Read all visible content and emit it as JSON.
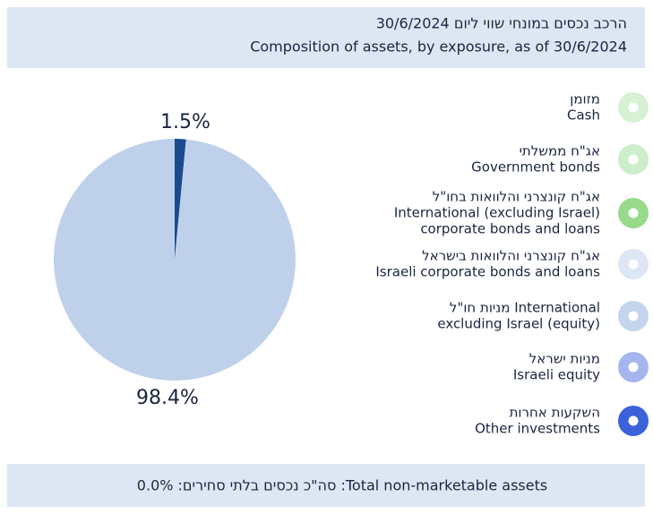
{
  "header": {
    "title_he": "הרכב נכסים במונחי שווי ליום 30/6/2024",
    "title_en": "Composition of assets, by exposure, as of 30/6/2024"
  },
  "chart_data": {
    "type": "pie",
    "categories": [
      null,
      null
    ],
    "values": [
      1.5,
      98.4
    ],
    "value_labels": [
      "1.5%",
      "98.4%"
    ],
    "colors": [
      "#1b4a8e",
      "#bfd1ea"
    ]
  },
  "legend": [
    {
      "he": "מזומן",
      "en": [
        "Cash"
      ],
      "color": "#d6f1d4"
    },
    {
      "he": "אג\"ח ממשלתי",
      "en": [
        "Government bonds"
      ],
      "color": "#cdeecb"
    },
    {
      "he": "אג\"ח קונצרני והלוואות בחו\"ל",
      "en": [
        "International (excluding Israel)",
        "corporate bonds and loans"
      ],
      "color": "#96da8a"
    },
    {
      "he": "אג\"ח קונצרני והלוואות בישראל",
      "en": [
        "Israeli corporate bonds and loans"
      ],
      "color": "#dce6f4"
    },
    {
      "he": "מניות חו\"ל International",
      "en": [
        "excluding Israel (equity)"
      ],
      "color": "#c3d4ec"
    },
    {
      "he": "מניות ישראל",
      "en": [
        "Israeli equity"
      ],
      "color": "#a5b5ee"
    },
    {
      "he": "השקעות אחרות",
      "en": [
        "Other investments"
      ],
      "color": "#3b62d8"
    }
  ],
  "footer": "סה\"כ נכסים בלתי סחירים: 0.0% :Total non-marketable assets"
}
